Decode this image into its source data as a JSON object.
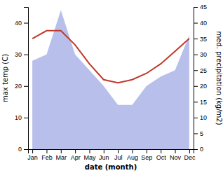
{
  "chart_data": {
    "type": "line",
    "xlabel": "date (month)",
    "ylabel": "max temp (C)",
    "y2label": "med. precipitation (kg/m2)",
    "categories": [
      "Jan",
      "Feb",
      "Mar",
      "Apr",
      "May",
      "Jun",
      "Jul",
      "Aug",
      "Sep",
      "Oct",
      "Nov",
      "Dec"
    ],
    "series": [
      {
        "type": "area",
        "axis": "y2",
        "color": "#b0b8e8",
        "values": [
          28,
          30,
          44,
          30,
          25,
          20,
          14,
          14,
          20,
          23,
          25,
          36
        ]
      },
      {
        "type": "line",
        "color": "#c0392b",
        "values": [
          35,
          37.5,
          37.5,
          33,
          27,
          22,
          21,
          22,
          24,
          27,
          31,
          35
        ]
      }
    ],
    "ylim": [
      0,
      45
    ],
    "yticks": [
      0,
      10,
      20,
      30,
      40
    ],
    "y2lim": [
      0,
      45
    ],
    "y2ticks": [
      0,
      5,
      10,
      15,
      20,
      25,
      30,
      35,
      40,
      45
    ],
    "grid": false
  }
}
